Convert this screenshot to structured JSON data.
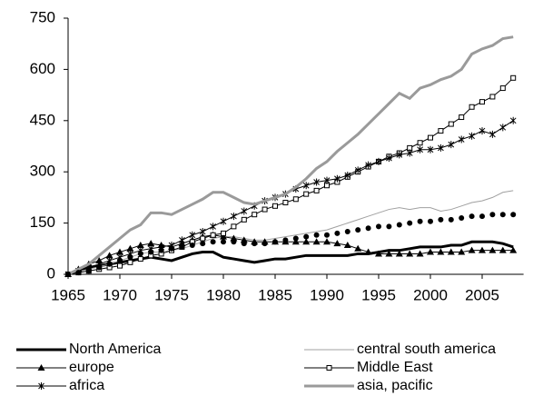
{
  "chart_data": {
    "type": "line",
    "x": [
      1965,
      1966,
      1967,
      1968,
      1969,
      1970,
      1971,
      1972,
      1973,
      1974,
      1975,
      1976,
      1977,
      1978,
      1979,
      1980,
      1981,
      1982,
      1983,
      1984,
      1985,
      1986,
      1987,
      1988,
      1989,
      1990,
      1991,
      1992,
      1993,
      1994,
      1995,
      1996,
      1997,
      1998,
      1999,
      2000,
      2001,
      2002,
      2003,
      2004,
      2005,
      2006,
      2007,
      2008
    ],
    "xlim": [
      1965,
      2009
    ],
    "xticks": [
      1965,
      1970,
      1975,
      1980,
      1985,
      1990,
      1995,
      2000,
      2005
    ],
    "ylim": [
      0,
      750
    ],
    "yticks": [
      0,
      150,
      300,
      450,
      600,
      750
    ],
    "series": [
      {
        "name": "North America",
        "color": "#000000",
        "width": 3,
        "marker": "none",
        "values": [
          0,
          10,
          20,
          25,
          30,
          35,
          40,
          45,
          50,
          45,
          40,
          50,
          60,
          65,
          65,
          50,
          45,
          40,
          35,
          40,
          45,
          45,
          50,
          55,
          55,
          55,
          55,
          55,
          60,
          60,
          65,
          70,
          70,
          75,
          80,
          80,
          80,
          85,
          85,
          95,
          95,
          95,
          90,
          80
        ]
      },
      {
        "name": "central south america",
        "color": "#a0a0a0",
        "width": 1,
        "marker": "none",
        "values": [
          0,
          8,
          15,
          22,
          30,
          40,
          50,
          60,
          65,
          65,
          70,
          75,
          85,
          95,
          105,
          110,
          110,
          105,
          100,
          100,
          105,
          110,
          115,
          120,
          125,
          130,
          140,
          150,
          160,
          170,
          180,
          190,
          195,
          190,
          195,
          195,
          185,
          190,
          200,
          210,
          215,
          225,
          240,
          245
        ]
      },
      {
        "name": "europe",
        "color": "#000000",
        "width": 1,
        "marker": "triangle",
        "values": [
          0,
          15,
          30,
          40,
          55,
          65,
          75,
          85,
          90,
          85,
          80,
          90,
          100,
          110,
          115,
          110,
          105,
          100,
          95,
          95,
          95,
          95,
          95,
          95,
          95,
          95,
          90,
          85,
          75,
          65,
          60,
          60,
          60,
          60,
          60,
          65,
          65,
          65,
          65,
          70,
          70,
          70,
          70,
          70
        ]
      },
      {
        "name": "Middle East",
        "color": "#000000",
        "width": 1,
        "marker": "square",
        "values": [
          0,
          5,
          10,
          15,
          20,
          25,
          35,
          45,
          55,
          60,
          70,
          80,
          95,
          105,
          115,
          120,
          140,
          160,
          175,
          190,
          200,
          210,
          220,
          235,
          245,
          260,
          270,
          285,
          300,
          315,
          330,
          345,
          355,
          370,
          385,
          400,
          420,
          440,
          460,
          490,
          505,
          520,
          545,
          575
        ]
      },
      {
        "name": "africa",
        "color": "#000000",
        "width": 1,
        "marker": "star",
        "values": [
          0,
          10,
          20,
          30,
          40,
          50,
          60,
          70,
          75,
          80,
          85,
          100,
          115,
          125,
          140,
          155,
          170,
          185,
          200,
          215,
          225,
          235,
          250,
          260,
          270,
          275,
          280,
          290,
          305,
          320,
          330,
          340,
          350,
          355,
          365,
          365,
          370,
          380,
          395,
          405,
          420,
          410,
          430,
          450
        ]
      },
      {
        "name": "asia, pacific",
        "color": "#9a9a9a",
        "width": 3,
        "marker": "none",
        "values": [
          0,
          15,
          30,
          55,
          80,
          105,
          130,
          145,
          180,
          180,
          175,
          190,
          205,
          220,
          240,
          240,
          225,
          210,
          205,
          215,
          225,
          235,
          255,
          280,
          310,
          330,
          360,
          385,
          410,
          440,
          470,
          500,
          530,
          515,
          545,
          555,
          570,
          580,
          600,
          645,
          660,
          670,
          690,
          695
        ]
      },
      {
        "color": "#000000",
        "width": 0,
        "marker": "circle",
        "values": [
          0,
          5,
          10,
          20,
          30,
          40,
          50,
          60,
          65,
          70,
          75,
          80,
          85,
          90,
          95,
          95,
          95,
          90,
          90,
          90,
          95,
          100,
          105,
          110,
          115,
          115,
          120,
          125,
          130,
          135,
          140,
          140,
          145,
          150,
          155,
          155,
          160,
          160,
          165,
          170,
          170,
          175,
          175,
          175
        ]
      }
    ]
  }
}
